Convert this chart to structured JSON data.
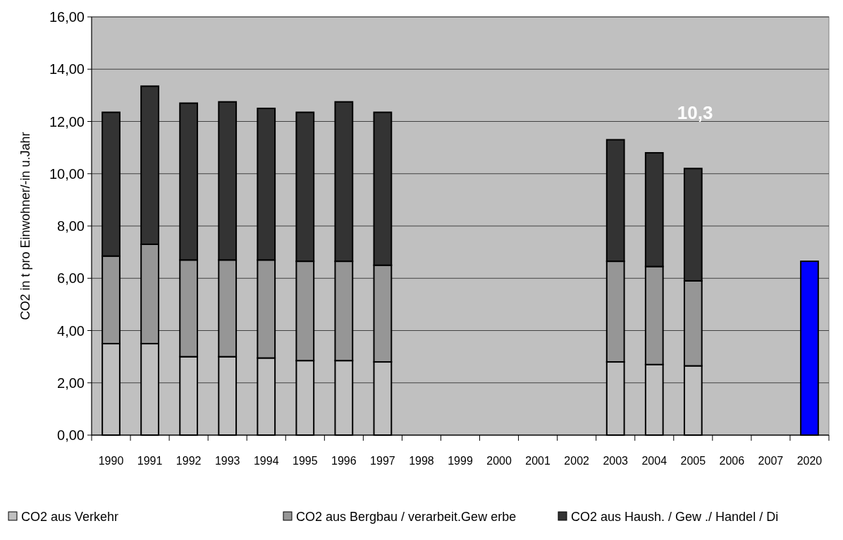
{
  "chart_data": {
    "type": "bar",
    "stacked": true,
    "ylabel": "CO2 in t pro Einwohner/-in u.Jahr",
    "categories": [
      "1990",
      "1991",
      "1992",
      "1993",
      "1994",
      "1995",
      "1996",
      "1997",
      "1998",
      "1999",
      "2000",
      "2001",
      "2002",
      "2003",
      "2004",
      "2005",
      "2006",
      "2007",
      "2020"
    ],
    "series": [
      {
        "name": "CO2 aus Verkehr",
        "color": "#c0c0c0",
        "values": [
          3.5,
          3.5,
          3.0,
          3.0,
          2.95,
          2.85,
          2.85,
          2.8,
          null,
          null,
          null,
          null,
          null,
          2.8,
          2.7,
          2.65,
          null,
          null,
          null
        ]
      },
      {
        "name": "CO2 aus Bergbau / verarbeit.Gew erbe",
        "color": "#969696",
        "values": [
          3.35,
          3.8,
          3.7,
          3.7,
          3.75,
          3.8,
          3.8,
          3.7,
          null,
          null,
          null,
          null,
          null,
          3.85,
          3.75,
          3.25,
          null,
          null,
          null
        ]
      },
      {
        "name": "CO2 aus Haush. / Gew ./ Handel / Di",
        "color": "#333333",
        "values": [
          5.5,
          6.05,
          6.0,
          6.05,
          5.8,
          5.7,
          6.1,
          5.85,
          null,
          null,
          null,
          null,
          null,
          4.65,
          4.35,
          4.3,
          null,
          null,
          null
        ]
      },
      {
        "color": "#0000ff",
        "values": [
          null,
          null,
          null,
          null,
          null,
          null,
          null,
          null,
          null,
          null,
          null,
          null,
          null,
          null,
          null,
          null,
          null,
          null,
          6.65
        ]
      }
    ],
    "ylim": [
      0,
      16
    ],
    "yticks": [
      {
        "value": 0,
        "label": "0,00"
      },
      {
        "value": 2,
        "label": "2,00"
      },
      {
        "value": 4,
        "label": "4,00"
      },
      {
        "value": 6,
        "label": "6,00"
      },
      {
        "value": 8,
        "label": "8,00"
      },
      {
        "value": 10,
        "label": "10,00"
      },
      {
        "value": 12,
        "label": "12,00"
      },
      {
        "value": 14,
        "label": "14,00"
      },
      {
        "value": 16,
        "label": "16,00"
      }
    ],
    "grid": "y",
    "legend": "bottom",
    "annotations": [
      "10,3"
    ]
  }
}
